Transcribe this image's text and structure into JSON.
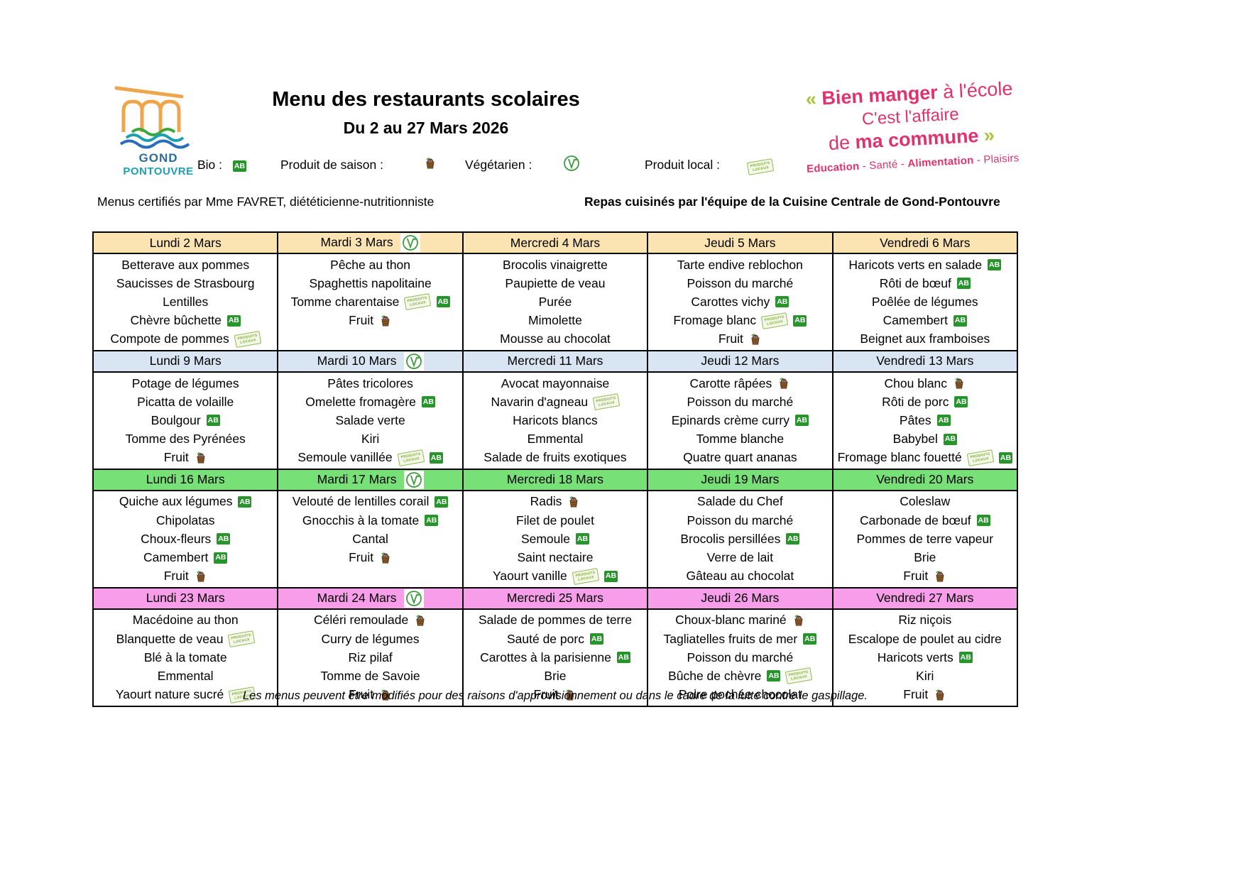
{
  "header": {
    "municipality": {
      "line1": "GOND",
      "line2": "PONTOUVRE"
    },
    "title": "Menu des restaurants scolaires",
    "subtitle": "Du 2 au 27 Mars 2026"
  },
  "slogan": {
    "lines": [
      {
        "parts": [
          {
            "t": "« ",
            "c": "chev"
          },
          {
            "t": "Bien manger",
            "c": "b"
          },
          {
            "t": " à l'école",
            "c": ""
          }
        ]
      },
      {
        "parts": [
          {
            "t": "C'est l'affaire",
            "c": ""
          }
        ]
      },
      {
        "parts": [
          {
            "t": "de ",
            "c": ""
          },
          {
            "t": "ma commune",
            "c": "b"
          },
          {
            "t": " »",
            "c": "chev"
          }
        ]
      }
    ],
    "tagline": [
      {
        "t": "Education",
        "c": "b"
      },
      {
        "t": " - ",
        "c": ""
      },
      {
        "t": "Santé",
        "c": ""
      },
      {
        "t": " - ",
        "c": ""
      },
      {
        "t": "Alimentation",
        "c": "b"
      },
      {
        "t": " - ",
        "c": ""
      },
      {
        "t": "Plaisirs",
        "c": ""
      }
    ]
  },
  "legend": [
    {
      "label": "Bio :",
      "icon": "bio"
    },
    {
      "label": "Produit de saison :",
      "icon": "saison"
    },
    {
      "label": "Végétarien :",
      "icon": "veg"
    },
    {
      "label": "Produit local :",
      "icon": "local"
    }
  ],
  "icon_defs": {
    "bio": {
      "name": "bio-icon",
      "text": "AB"
    },
    "saison": {
      "name": "seasonal-product-icon"
    },
    "veg": {
      "name": "vegetarian-icon"
    },
    "local": {
      "name": "local-product-icon",
      "line1": "PRODUITS",
      "line2": "LOCAUX"
    }
  },
  "notes": {
    "left": "Menus certifiés par Mme FAVRET, diététicienne-nutritionniste",
    "right": "Repas cuisinés par l'équipe de la Cuisine Centrale de Gond-Pontouvre"
  },
  "weeks": [
    {
      "header_color": "#FCE4B2",
      "days": [
        {
          "label": "Lundi 2 Mars",
          "veg": false,
          "items": [
            {
              "text": "Betterave aux pommes",
              "icons": []
            },
            {
              "text": "Saucisses de Strasbourg",
              "icons": []
            },
            {
              "text": "Lentilles",
              "icons": []
            },
            {
              "text": "Chèvre bûchette",
              "icons": [
                "bio"
              ]
            },
            {
              "text": "Compote de pommes",
              "icons": [
                "local"
              ]
            }
          ]
        },
        {
          "label": "Mardi 3 Mars",
          "veg": true,
          "items": [
            {
              "text": "Pêche au thon",
              "icons": []
            },
            {
              "text": "Spaghettis napolitaine",
              "icons": []
            },
            {
              "text": "Tomme charentaise",
              "icons": [
                "local",
                "bio"
              ]
            },
            {
              "text": "Fruit",
              "icons": [
                "saison"
              ]
            }
          ]
        },
        {
          "label": "Mercredi 4 Mars",
          "veg": false,
          "items": [
            {
              "text": "Brocolis vinaigrette",
              "icons": []
            },
            {
              "text": "Paupiette de veau",
              "icons": []
            },
            {
              "text": "Purée",
              "icons": []
            },
            {
              "text": "Mimolette",
              "icons": []
            },
            {
              "text": "Mousse au chocolat",
              "icons": []
            }
          ]
        },
        {
          "label": "Jeudi 5 Mars",
          "veg": false,
          "items": [
            {
              "text": "Tarte endive reblochon",
              "icons": []
            },
            {
              "text": "Poisson du marché",
              "icons": []
            },
            {
              "text": "Carottes vichy",
              "icons": [
                "bio"
              ]
            },
            {
              "text": "Fromage blanc",
              "icons": [
                "local",
                "bio"
              ]
            },
            {
              "text": "Fruit",
              "icons": [
                "saison"
              ]
            }
          ]
        },
        {
          "label": "Vendredi 6 Mars",
          "veg": false,
          "items": [
            {
              "text": "Haricots verts en salade",
              "icons": [
                "bio"
              ]
            },
            {
              "text": "Rôti de bœuf",
              "icons": [
                "bio"
              ]
            },
            {
              "text": "Poêlée de légumes",
              "icons": []
            },
            {
              "text": "Camembert",
              "icons": [
                "bio"
              ]
            },
            {
              "text": "Beignet aux framboises",
              "icons": []
            }
          ]
        }
      ]
    },
    {
      "header_color": "#D9E5F2",
      "days": [
        {
          "label": "Lundi 9 Mars",
          "veg": false,
          "items": [
            {
              "text": "Potage de légumes",
              "icons": []
            },
            {
              "text": "Picatta de volaille",
              "icons": []
            },
            {
              "text": "Boulgour",
              "icons": [
                "bio"
              ]
            },
            {
              "text": "Tomme des Pyrénées",
              "icons": []
            },
            {
              "text": "Fruit",
              "icons": [
                "saison"
              ]
            }
          ]
        },
        {
          "label": "Mardi 10 Mars",
          "veg": true,
          "items": [
            {
              "text": "Pâtes tricolores",
              "icons": []
            },
            {
              "text": "Omelette fromagère",
              "icons": [
                "bio"
              ]
            },
            {
              "text": "Salade verte",
              "icons": []
            },
            {
              "text": "Kiri",
              "icons": []
            },
            {
              "text": "Semoule vanillée",
              "icons": [
                "local",
                "bio"
              ]
            }
          ]
        },
        {
          "label": "Mercredi 11 Mars",
          "veg": false,
          "items": [
            {
              "text": "Avocat mayonnaise",
              "icons": []
            },
            {
              "text": "Navarin d'agneau",
              "icons": [
                "local"
              ]
            },
            {
              "text": "Haricots blancs",
              "icons": []
            },
            {
              "text": "Emmental",
              "icons": []
            },
            {
              "text": "Salade de fruits exotiques",
              "icons": []
            }
          ]
        },
        {
          "label": "Jeudi 12 Mars",
          "veg": false,
          "items": [
            {
              "text": "Carotte râpées",
              "icons": [
                "saison"
              ]
            },
            {
              "text": "Poisson du marché",
              "icons": []
            },
            {
              "text": "Epinards crème curry",
              "icons": [
                "bio"
              ]
            },
            {
              "text": "Tomme blanche",
              "icons": []
            },
            {
              "text": "Quatre quart ananas",
              "icons": []
            }
          ]
        },
        {
          "label": "Vendredi 13 Mars",
          "veg": false,
          "items": [
            {
              "text": "Chou blanc",
              "icons": [
                "saison"
              ]
            },
            {
              "text": "Rôti de porc",
              "icons": [
                "bio"
              ]
            },
            {
              "text": "Pâtes",
              "icons": [
                "bio"
              ]
            },
            {
              "text": "Babybel",
              "icons": [
                "bio"
              ]
            },
            {
              "text": "Fromage blanc fouetté",
              "icons": [
                "local",
                "bio"
              ]
            }
          ]
        }
      ]
    },
    {
      "header_color": "#77E077",
      "days": [
        {
          "label": "Lundi 16 Mars",
          "veg": false,
          "items": [
            {
              "text": "Quiche aux légumes",
              "icons": [
                "bio"
              ]
            },
            {
              "text": "Chipolatas",
              "icons": []
            },
            {
              "text": "Choux-fleurs",
              "icons": [
                "bio"
              ]
            },
            {
              "text": "Camembert",
              "icons": [
                "bio"
              ]
            },
            {
              "text": "Fruit",
              "icons": [
                "saison"
              ]
            }
          ]
        },
        {
          "label": "Mardi 17 Mars",
          "veg": true,
          "items": [
            {
              "text": "Velouté de lentilles corail",
              "icons": [
                "bio"
              ]
            },
            {
              "text": "Gnocchis à la tomate",
              "icons": [
                "bio"
              ]
            },
            {
              "text": "Cantal",
              "icons": []
            },
            {
              "text": "Fruit",
              "icons": [
                "saison"
              ]
            }
          ]
        },
        {
          "label": "Mercredi 18 Mars",
          "veg": false,
          "items": [
            {
              "text": "Radis",
              "icons": [
                "saison"
              ]
            },
            {
              "text": "Filet de poulet",
              "icons": []
            },
            {
              "text": "Semoule",
              "icons": [
                "bio"
              ]
            },
            {
              "text": "Saint nectaire",
              "icons": []
            },
            {
              "text": "Yaourt vanille",
              "icons": [
                "local",
                "bio"
              ]
            }
          ]
        },
        {
          "label": "Jeudi 19 Mars",
          "veg": false,
          "items": [
            {
              "text": "Salade du Chef",
              "icons": []
            },
            {
              "text": "Poisson du marché",
              "icons": []
            },
            {
              "text": "Brocolis persillées",
              "icons": [
                "bio"
              ]
            },
            {
              "text": "Verre de lait",
              "icons": []
            },
            {
              "text": "Gâteau au chocolat",
              "icons": []
            }
          ]
        },
        {
          "label": "Vendredi 20 Mars",
          "veg": false,
          "items": [
            {
              "text": "Coleslaw",
              "icons": []
            },
            {
              "text": "Carbonade de bœuf",
              "icons": [
                "bio"
              ]
            },
            {
              "text": "Pommes de terre vapeur",
              "icons": []
            },
            {
              "text": "Brie",
              "icons": []
            },
            {
              "text": "Fruit",
              "icons": [
                "saison"
              ]
            }
          ]
        }
      ]
    },
    {
      "header_color": "#F79DE9",
      "days": [
        {
          "label": "Lundi 23 Mars",
          "veg": false,
          "items": [
            {
              "text": "Macédoine au thon",
              "icons": []
            },
            {
              "text": "Blanquette de veau",
              "icons": [
                "local"
              ]
            },
            {
              "text": "Blé à la tomate",
              "icons": []
            },
            {
              "text": "Emmental",
              "icons": []
            },
            {
              "text": "Yaourt nature sucré",
              "icons": [
                "local"
              ]
            }
          ]
        },
        {
          "label": "Mardi 24 Mars",
          "veg": true,
          "items": [
            {
              "text": "Céléri remoulade",
              "icons": [
                "saison"
              ]
            },
            {
              "text": "Curry de légumes",
              "icons": []
            },
            {
              "text": "Riz pilaf",
              "icons": []
            },
            {
              "text": "Tomme de Savoie",
              "icons": []
            },
            {
              "text": "Fruit",
              "icons": [
                "saison"
              ]
            }
          ]
        },
        {
          "label": "Mercredi 25 Mars",
          "veg": false,
          "items": [
            {
              "text": "Salade de pommes de terre",
              "icons": []
            },
            {
              "text": "Sauté de porc",
              "icons": [
                "bio"
              ]
            },
            {
              "text": "Carottes à la parisienne",
              "icons": [
                "bio"
              ]
            },
            {
              "text": "Brie",
              "icons": []
            },
            {
              "text": "Fruit",
              "icons": [
                "saison"
              ]
            }
          ]
        },
        {
          "label": "Jeudi 26 Mars",
          "veg": false,
          "items": [
            {
              "text": "Choux-blanc mariné",
              "icons": [
                "saison"
              ]
            },
            {
              "text": "Tagliatelles fruits de mer",
              "icons": [
                "bio"
              ]
            },
            {
              "text": "Poisson du marché",
              "icons": []
            },
            {
              "text": "Bûche de chèvre",
              "icons": [
                "bio",
                "local"
              ]
            },
            {
              "text": "Poire pochée chocolat",
              "icons": []
            }
          ]
        },
        {
          "label": "Vendredi 27 Mars",
          "veg": false,
          "items": [
            {
              "text": "Riz niçois",
              "icons": []
            },
            {
              "text": "Escalope de poulet au cidre",
              "icons": []
            },
            {
              "text": "Haricots verts",
              "icons": [
                "bio"
              ]
            },
            {
              "text": "Kiri",
              "icons": []
            },
            {
              "text": "Fruit",
              "icons": [
                "saison"
              ]
            }
          ]
        }
      ]
    }
  ],
  "footer": "Les menus peuvent être modifiés pour des raisons d'approvisionnement ou dans le cadre de la lutte contre le gaspillage."
}
